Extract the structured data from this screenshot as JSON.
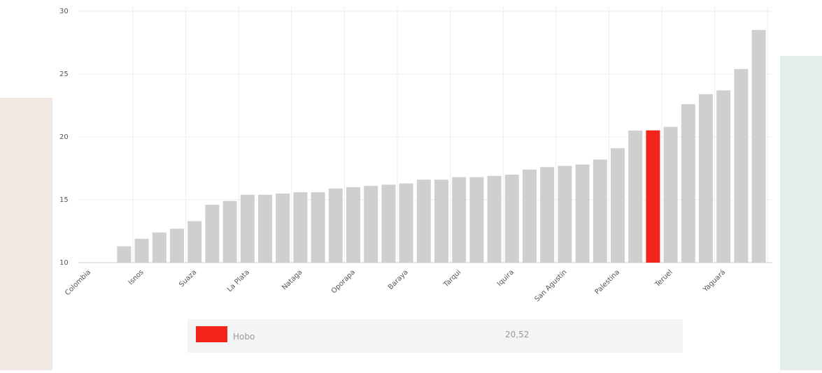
{
  "chart_data": {
    "type": "bar",
    "categories": [
      "Colombia",
      null,
      null,
      "Isnos",
      null,
      null,
      "Suaza",
      null,
      null,
      "La Plata",
      null,
      null,
      "Nataga",
      null,
      null,
      "Oporapa",
      null,
      null,
      "Baraya",
      null,
      null,
      "Tarqui",
      null,
      null,
      "Iquira",
      null,
      null,
      "San Agustín",
      null,
      null,
      "Palestina",
      null,
      null,
      "Teruel",
      null,
      null,
      "Yaguará",
      null,
      null
    ],
    "values": [
      null,
      null,
      11.3,
      11.9,
      12.4,
      12.7,
      13.3,
      14.6,
      14.9,
      15.4,
      15.4,
      15.5,
      15.6,
      15.6,
      15.9,
      16.0,
      16.1,
      16.2,
      16.3,
      16.6,
      16.6,
      16.8,
      16.8,
      16.9,
      17.0,
      17.4,
      17.6,
      17.7,
      17.8,
      18.2,
      19.1,
      20.5,
      20.52,
      20.8,
      22.6,
      23.4,
      23.7,
      25.4,
      28.5
    ],
    "color": "#cfcfcf",
    "ylim": [
      10,
      30
    ],
    "yticks": [
      10,
      15,
      20,
      25,
      30
    ],
    "grid": true,
    "highlight": {
      "name": "Hobo",
      "value": 20.52,
      "value_label": "20,52",
      "color": "#f5241b"
    }
  }
}
